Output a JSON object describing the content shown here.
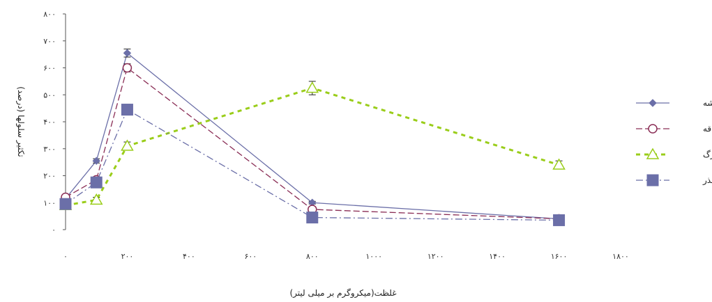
{
  "chart_data": {
    "type": "line",
    "title": "",
    "xlabel": "غلظت(میکروگرم بر میلی لیتر)",
    "ylabel": "تکثیر سلولها (درصد)",
    "xlim": [
      0,
      1800
    ],
    "ylim": [
      0,
      800
    ],
    "x_ticks": [
      0,
      200,
      400,
      600,
      800,
      1000,
      1200,
      1400,
      1600,
      1800
    ],
    "x_tick_labels": [
      "۰",
      "۲۰۰",
      "۴۰۰",
      "۶۰۰",
      "۸۰۰",
      "۱۰۰۰",
      "۱۲۰۰",
      "۱۴۰۰",
      "۱۶۰۰",
      "۱۸۰۰"
    ],
    "y_ticks": [
      0,
      100,
      200,
      300,
      400,
      500,
      600,
      700,
      800
    ],
    "y_tick_labels": [
      "۰",
      "۱۰۰",
      "۲۰۰",
      "۳۰۰",
      "۴۰۰",
      "۵۰۰",
      "۶۰۰",
      "۷۰۰",
      "۸۰۰"
    ],
    "grid": false,
    "legend_position": "right",
    "series": [
      {
        "name": "ریشه",
        "color": "#6b6fa8",
        "marker": "diamond",
        "line_style": "solid",
        "x": [
          0,
          100,
          200,
          800,
          1600
        ],
        "y": [
          115,
          255,
          655,
          100,
          40
        ],
        "error": [
          8,
          8,
          15,
          5,
          5
        ]
      },
      {
        "name": "ساقه",
        "color": "#8a2d55",
        "marker": "open-circle",
        "line_style": "dashed",
        "x": [
          0,
          100,
          200,
          800,
          1600
        ],
        "y": [
          120,
          185,
          600,
          75,
          40
        ],
        "error": [
          8,
          8,
          15,
          8,
          5
        ]
      },
      {
        "name": "برگ",
        "color": "#9acd1a",
        "marker": "open-triangle",
        "line_style": "dotted-heavy",
        "x": [
          0,
          100,
          200,
          800,
          1600
        ],
        "y": [
          90,
          110,
          310,
          525,
          240
        ],
        "error": [
          8,
          10,
          15,
          25,
          15
        ]
      },
      {
        "name": "بذر",
        "color": "#6b6fa8",
        "marker": "square",
        "line_style": "dash-dot",
        "x": [
          0,
          100,
          200,
          800,
          1600
        ],
        "y": [
          95,
          175,
          445,
          45,
          35
        ],
        "error": [
          10,
          8,
          20,
          5,
          5
        ]
      }
    ]
  }
}
